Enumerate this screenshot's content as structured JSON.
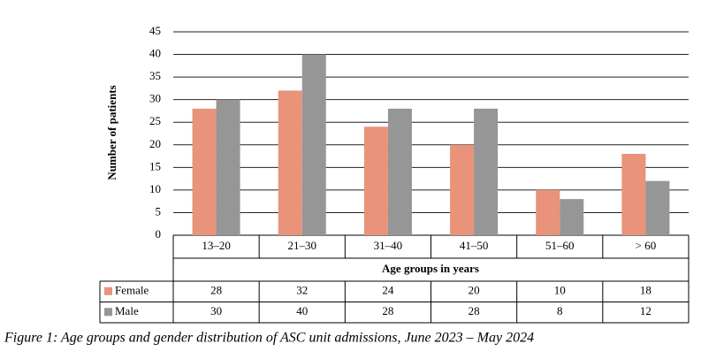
{
  "chart_data": {
    "type": "bar",
    "caption": "Figure 1: Age groups and gender distribution of ASC unit admissions, June 2023 – May 2024",
    "x_label": "Age groups in years",
    "y_label": "Number of patients",
    "categories": [
      "13–20",
      "21–30",
      "31–40",
      "41–50",
      "51–60",
      "> 60"
    ],
    "series": [
      {
        "name": "Female",
        "color": "#e8937a",
        "values": [
          28,
          32,
          24,
          20,
          10,
          18
        ]
      },
      {
        "name": "Male",
        "color": "#969696",
        "values": [
          30,
          40,
          28,
          28,
          8,
          12
        ]
      }
    ],
    "ylim": [
      0,
      45
    ],
    "yticks": [
      0,
      5,
      10,
      15,
      20,
      25,
      30,
      35,
      40,
      45
    ],
    "grid": true
  }
}
